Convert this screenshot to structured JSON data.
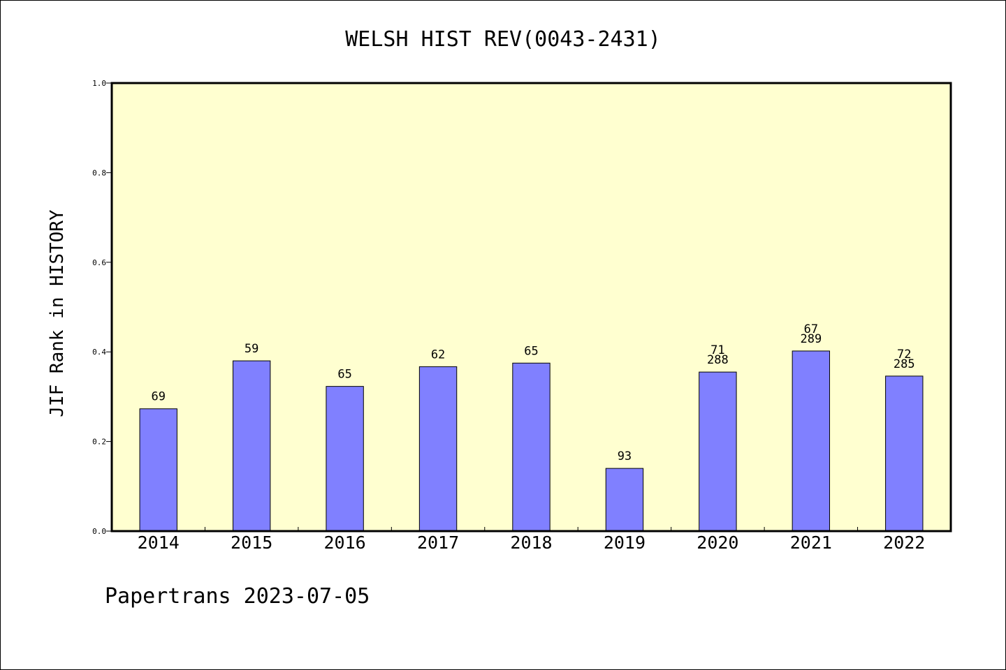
{
  "chart_data": {
    "type": "bar",
    "title": "WELSH HIST REV(0043-2431)",
    "xlabel": "",
    "ylabel": "JIF Rank in HISTORY",
    "ylim": [
      0.0,
      1.0
    ],
    "yticks": [
      "0.0",
      "0.2",
      "0.4",
      "0.6",
      "0.8",
      "1.0"
    ],
    "categories": [
      "2014",
      "2015",
      "2016",
      "2017",
      "2018",
      "2019",
      "2020",
      "2021",
      "2022"
    ],
    "values": [
      0.273,
      0.38,
      0.323,
      0.367,
      0.375,
      0.14,
      0.355,
      0.402,
      0.346
    ],
    "bar_labels": [
      [
        "69"
      ],
      [
        "59"
      ],
      [
        "65"
      ],
      [
        "62"
      ],
      [
        "65"
      ],
      [
        "93"
      ],
      [
        "71",
        "288"
      ],
      [
        "67",
        "289"
      ],
      [
        "72",
        "285"
      ]
    ],
    "grid": false,
    "colors": {
      "plot_background": "#ffffd0",
      "bar": "#8080ff"
    }
  },
  "footer": "Papertrans 2023-07-05"
}
